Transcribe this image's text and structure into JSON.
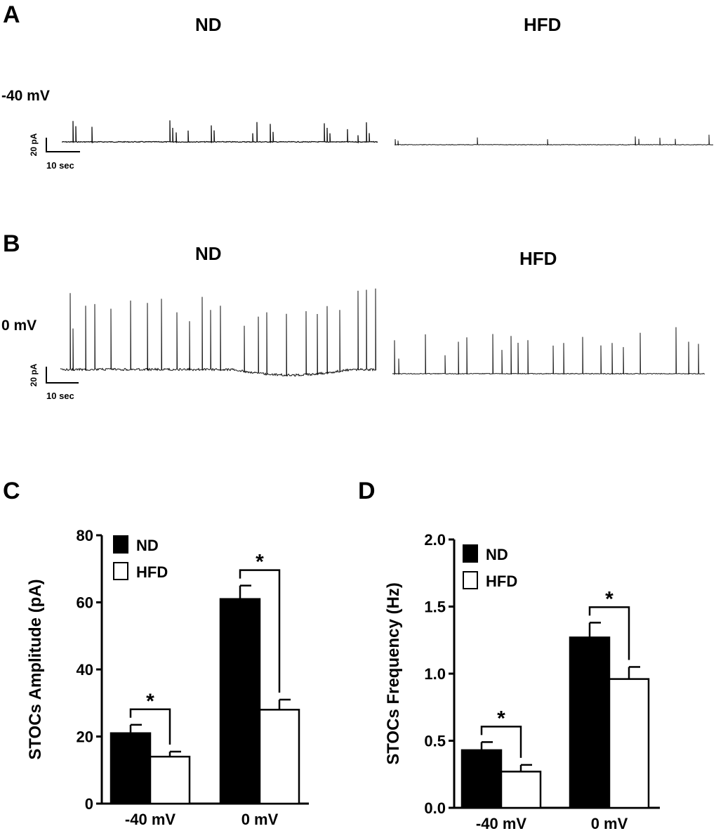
{
  "panels": {
    "A": {
      "letter": "A",
      "left_title": "ND",
      "right_title": "HFD",
      "voltage": "-40 mV",
      "scalebar": {
        "current": "20 pA",
        "time": "10 sec"
      }
    },
    "B": {
      "letter": "B",
      "left_title": "ND",
      "right_title": "HFD",
      "voltage": "0 mV",
      "scalebar": {
        "current": "20 pA",
        "time": "10 sec"
      }
    },
    "C": {
      "letter": "C"
    },
    "D": {
      "letter": "D"
    }
  },
  "colors": {
    "nd": "#000000",
    "hfd": "#ffffff",
    "trace": "#111111"
  },
  "chart_data": [
    {
      "type": "bar",
      "ylabel": "STOCs Amplitude (pA)",
      "xlabel": "",
      "categories": [
        "-40 mV",
        "0 mV"
      ],
      "ylim": [
        0,
        80
      ],
      "yticks": [
        "0",
        "20",
        "40",
        "60",
        "80"
      ],
      "legend_position": "top-left",
      "series": [
        {
          "name": "ND",
          "values": [
            21,
            61
          ],
          "errors": [
            2.5,
            4
          ]
        },
        {
          "name": "HFD",
          "values": [
            14,
            28
          ],
          "errors": [
            1.5,
            3
          ]
        }
      ],
      "significance": [
        "*",
        "*"
      ],
      "grid": false
    },
    {
      "type": "bar",
      "ylabel": "STOCs Frequency (Hz)",
      "xlabel": "",
      "categories": [
        "-40 mV",
        "0 mV"
      ],
      "ylim": [
        0,
        2.0
      ],
      "yticks": [
        "0.0",
        "0.5",
        "1.0",
        "1.5",
        "2.0"
      ],
      "legend_position": "top-left",
      "series": [
        {
          "name": "ND",
          "values": [
            0.43,
            1.27
          ],
          "errors": [
            0.06,
            0.11
          ]
        },
        {
          "name": "HFD",
          "values": [
            0.27,
            0.96
          ],
          "errors": [
            0.05,
            0.09
          ]
        }
      ],
      "significance": [
        "*",
        "*"
      ],
      "grid": false
    }
  ]
}
